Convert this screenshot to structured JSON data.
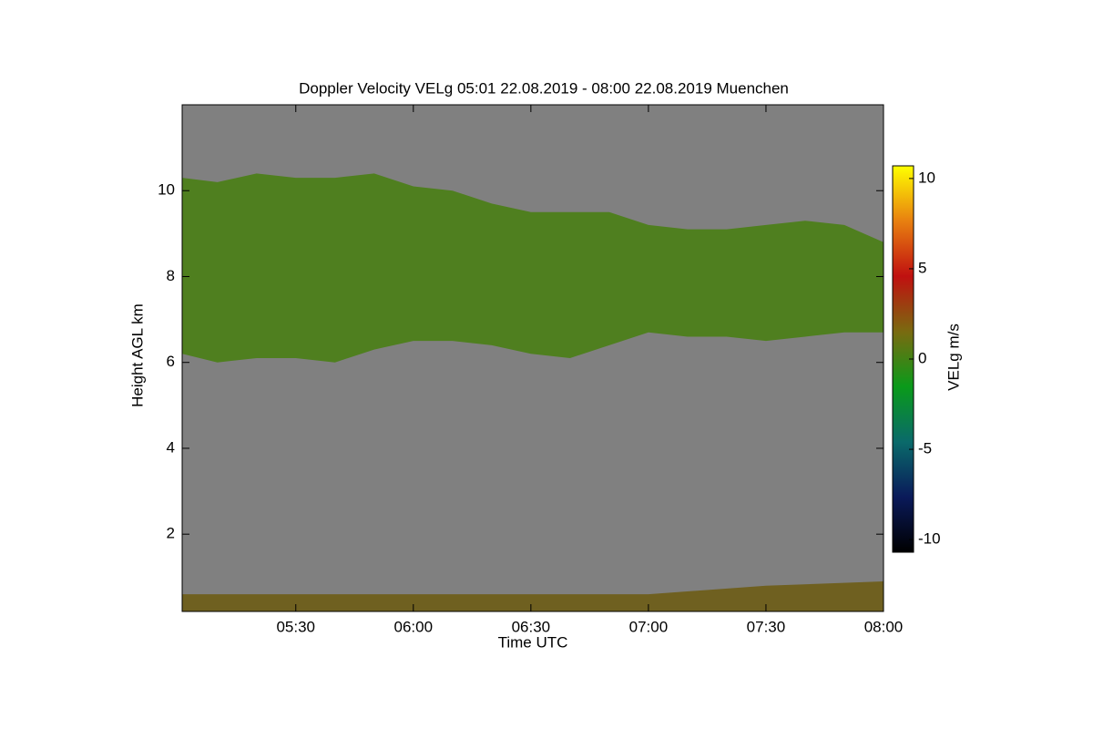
{
  "chart_data": {
    "type": "heatmap",
    "title": "Doppler Velocity VELg   05:01 22.08.2019 - 08:00 22.08.2019 Muenchen",
    "x_label": "Time UTC",
    "y_label": "Height AGL km",
    "colorbar_label": "VELg m/s",
    "background_color": "#808080",
    "xlim": [
      301,
      480
    ],
    "xticks": [
      {
        "value": 330,
        "label": "05:30"
      },
      {
        "value": 360,
        "label": "06:00"
      },
      {
        "value": 390,
        "label": "06:30"
      },
      {
        "value": 420,
        "label": "07:00"
      },
      {
        "value": 450,
        "label": "07:30"
      },
      {
        "value": 480,
        "label": "08:00"
      }
    ],
    "ylim": [
      0.2,
      12
    ],
    "yticks": [
      2,
      4,
      6,
      8,
      10
    ],
    "clim": [
      -10.7,
      10.7
    ],
    "cticks": [
      10,
      5,
      0,
      -5,
      -10
    ],
    "colormap": [
      "#000000",
      "#0a1a5a",
      "#0a6a6a",
      "#0a9a1a",
      "#7a6a10",
      "#c01010",
      "#e88010",
      "#ffff00"
    ],
    "cloud": {
      "color": "#4f7f1f",
      "x": [
        301,
        310,
        320,
        330,
        340,
        350,
        360,
        370,
        380,
        390,
        400,
        410,
        420,
        430,
        440,
        450,
        460,
        470,
        480
      ],
      "top": [
        10.3,
        10.2,
        10.4,
        10.3,
        10.3,
        10.4,
        10.1,
        10.0,
        9.7,
        9.5,
        9.5,
        9.5,
        9.2,
        9.1,
        9.1,
        9.2,
        9.3,
        9.2,
        8.8
      ],
      "base": [
        6.2,
        6.0,
        6.1,
        6.1,
        6.0,
        6.3,
        6.5,
        6.5,
        6.4,
        6.2,
        6.1,
        6.4,
        6.7,
        6.6,
        6.6,
        6.5,
        6.6,
        6.7,
        6.7
      ]
    },
    "low_layer": {
      "color": "#6f6020",
      "x": [
        301,
        330,
        360,
        390,
        420,
        450,
        480
      ],
      "top": [
        0.6,
        0.6,
        0.6,
        0.6,
        0.6,
        0.8,
        0.9
      ]
    }
  }
}
